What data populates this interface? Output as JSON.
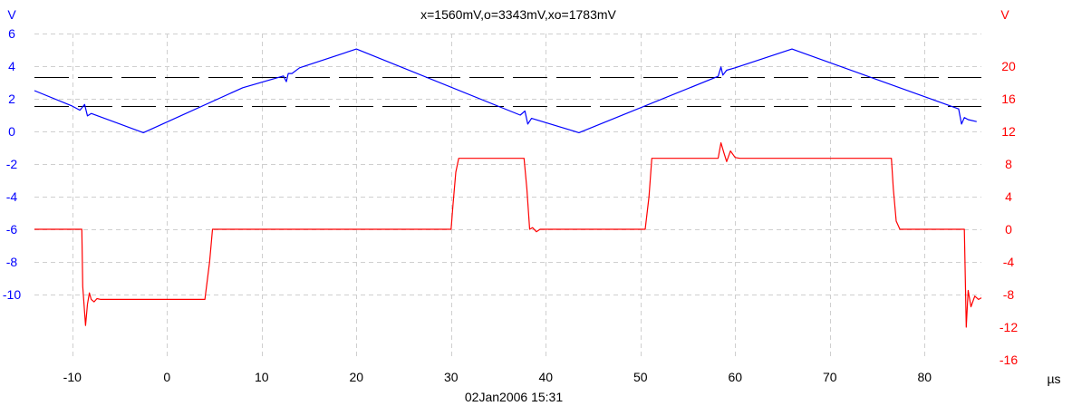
{
  "chart_data": {
    "type": "line",
    "title": "x=1560mV,o=3343mV,xo=1783mV",
    "timestamp": "02Jan2006  15:31",
    "x_unit": "µs",
    "xlim": [
      -14,
      86
    ],
    "x_ticks": [
      -10,
      0,
      10,
      20,
      30,
      40,
      50,
      60,
      70,
      80
    ],
    "grid": true,
    "left_axis": {
      "unit": "V",
      "color": "#0000ff",
      "ylim": [
        -14,
        6
      ],
      "ticks": [
        6,
        4,
        2,
        0,
        -2,
        -4,
        -6,
        -8,
        -10
      ]
    },
    "right_axis": {
      "unit": "V",
      "color": "#ff0000",
      "ylim": [
        -16,
        24
      ],
      "ticks": [
        20,
        16,
        12,
        8,
        4,
        0,
        -4,
        -8,
        -12,
        -16
      ]
    },
    "cursors": {
      "axis": "left",
      "color": "#000000",
      "style": "dashed",
      "values": [
        3.343,
        1.56
      ]
    },
    "series": [
      {
        "axis": "left",
        "color": "#0000ff",
        "x": [
          -14,
          -10,
          -9.2,
          -8.7,
          -8.4,
          -8.0,
          -2.5,
          8,
          12.3,
          12.6,
          12.8,
          13.2,
          14,
          20,
          37.3,
          37.8,
          38.1,
          38.5,
          43.5,
          58.2,
          58.5,
          58.7,
          59.1,
          60,
          66,
          83.6,
          83.9,
          84.2,
          84.6,
          85.5
        ],
        "y": [
          2.5,
          1.55,
          1.3,
          1.65,
          0.95,
          1.1,
          -0.08,
          2.68,
          3.4,
          3.05,
          3.55,
          3.55,
          3.9,
          5.05,
          1.0,
          1.25,
          0.45,
          0.8,
          -0.08,
          3.38,
          3.95,
          3.45,
          3.75,
          3.9,
          5.05,
          1.38,
          0.45,
          0.85,
          0.72,
          0.6
        ]
      },
      {
        "axis": "right",
        "color": "#ff0000",
        "x": [
          -14,
          -9,
          -8.9,
          -8.6,
          -8.4,
          -8.2,
          -8.0,
          -7.7,
          -7.4,
          -7.0,
          4.0,
          4.5,
          4.8,
          30,
          30.2,
          30.5,
          30.8,
          37.7,
          38.0,
          38.3,
          38.6,
          39.0,
          39.4,
          50.5,
          50.9,
          51.2,
          58.2,
          58.5,
          58.8,
          59.1,
          59.5,
          60.0,
          60.5,
          61.0,
          76.5,
          76.7,
          77.0,
          77.4,
          84.2,
          84.4,
          84.6,
          84.9,
          85.3,
          85.7,
          86.0
        ],
        "y": [
          0,
          0,
          -7,
          -11.8,
          -9.2,
          -7.8,
          -8.6,
          -8.9,
          -8.5,
          -8.6,
          -8.6,
          -4,
          0,
          0,
          3,
          7,
          8.7,
          8.7,
          5,
          0,
          0.2,
          -0.3,
          0,
          0,
          4,
          8.7,
          8.7,
          10.6,
          9.4,
          8.3,
          9.6,
          8.8,
          8.7,
          8.7,
          8.7,
          5,
          1,
          0,
          0,
          -12,
          -7.5,
          -9.5,
          -8.2,
          -8.6,
          -8.4
        ]
      }
    ]
  }
}
